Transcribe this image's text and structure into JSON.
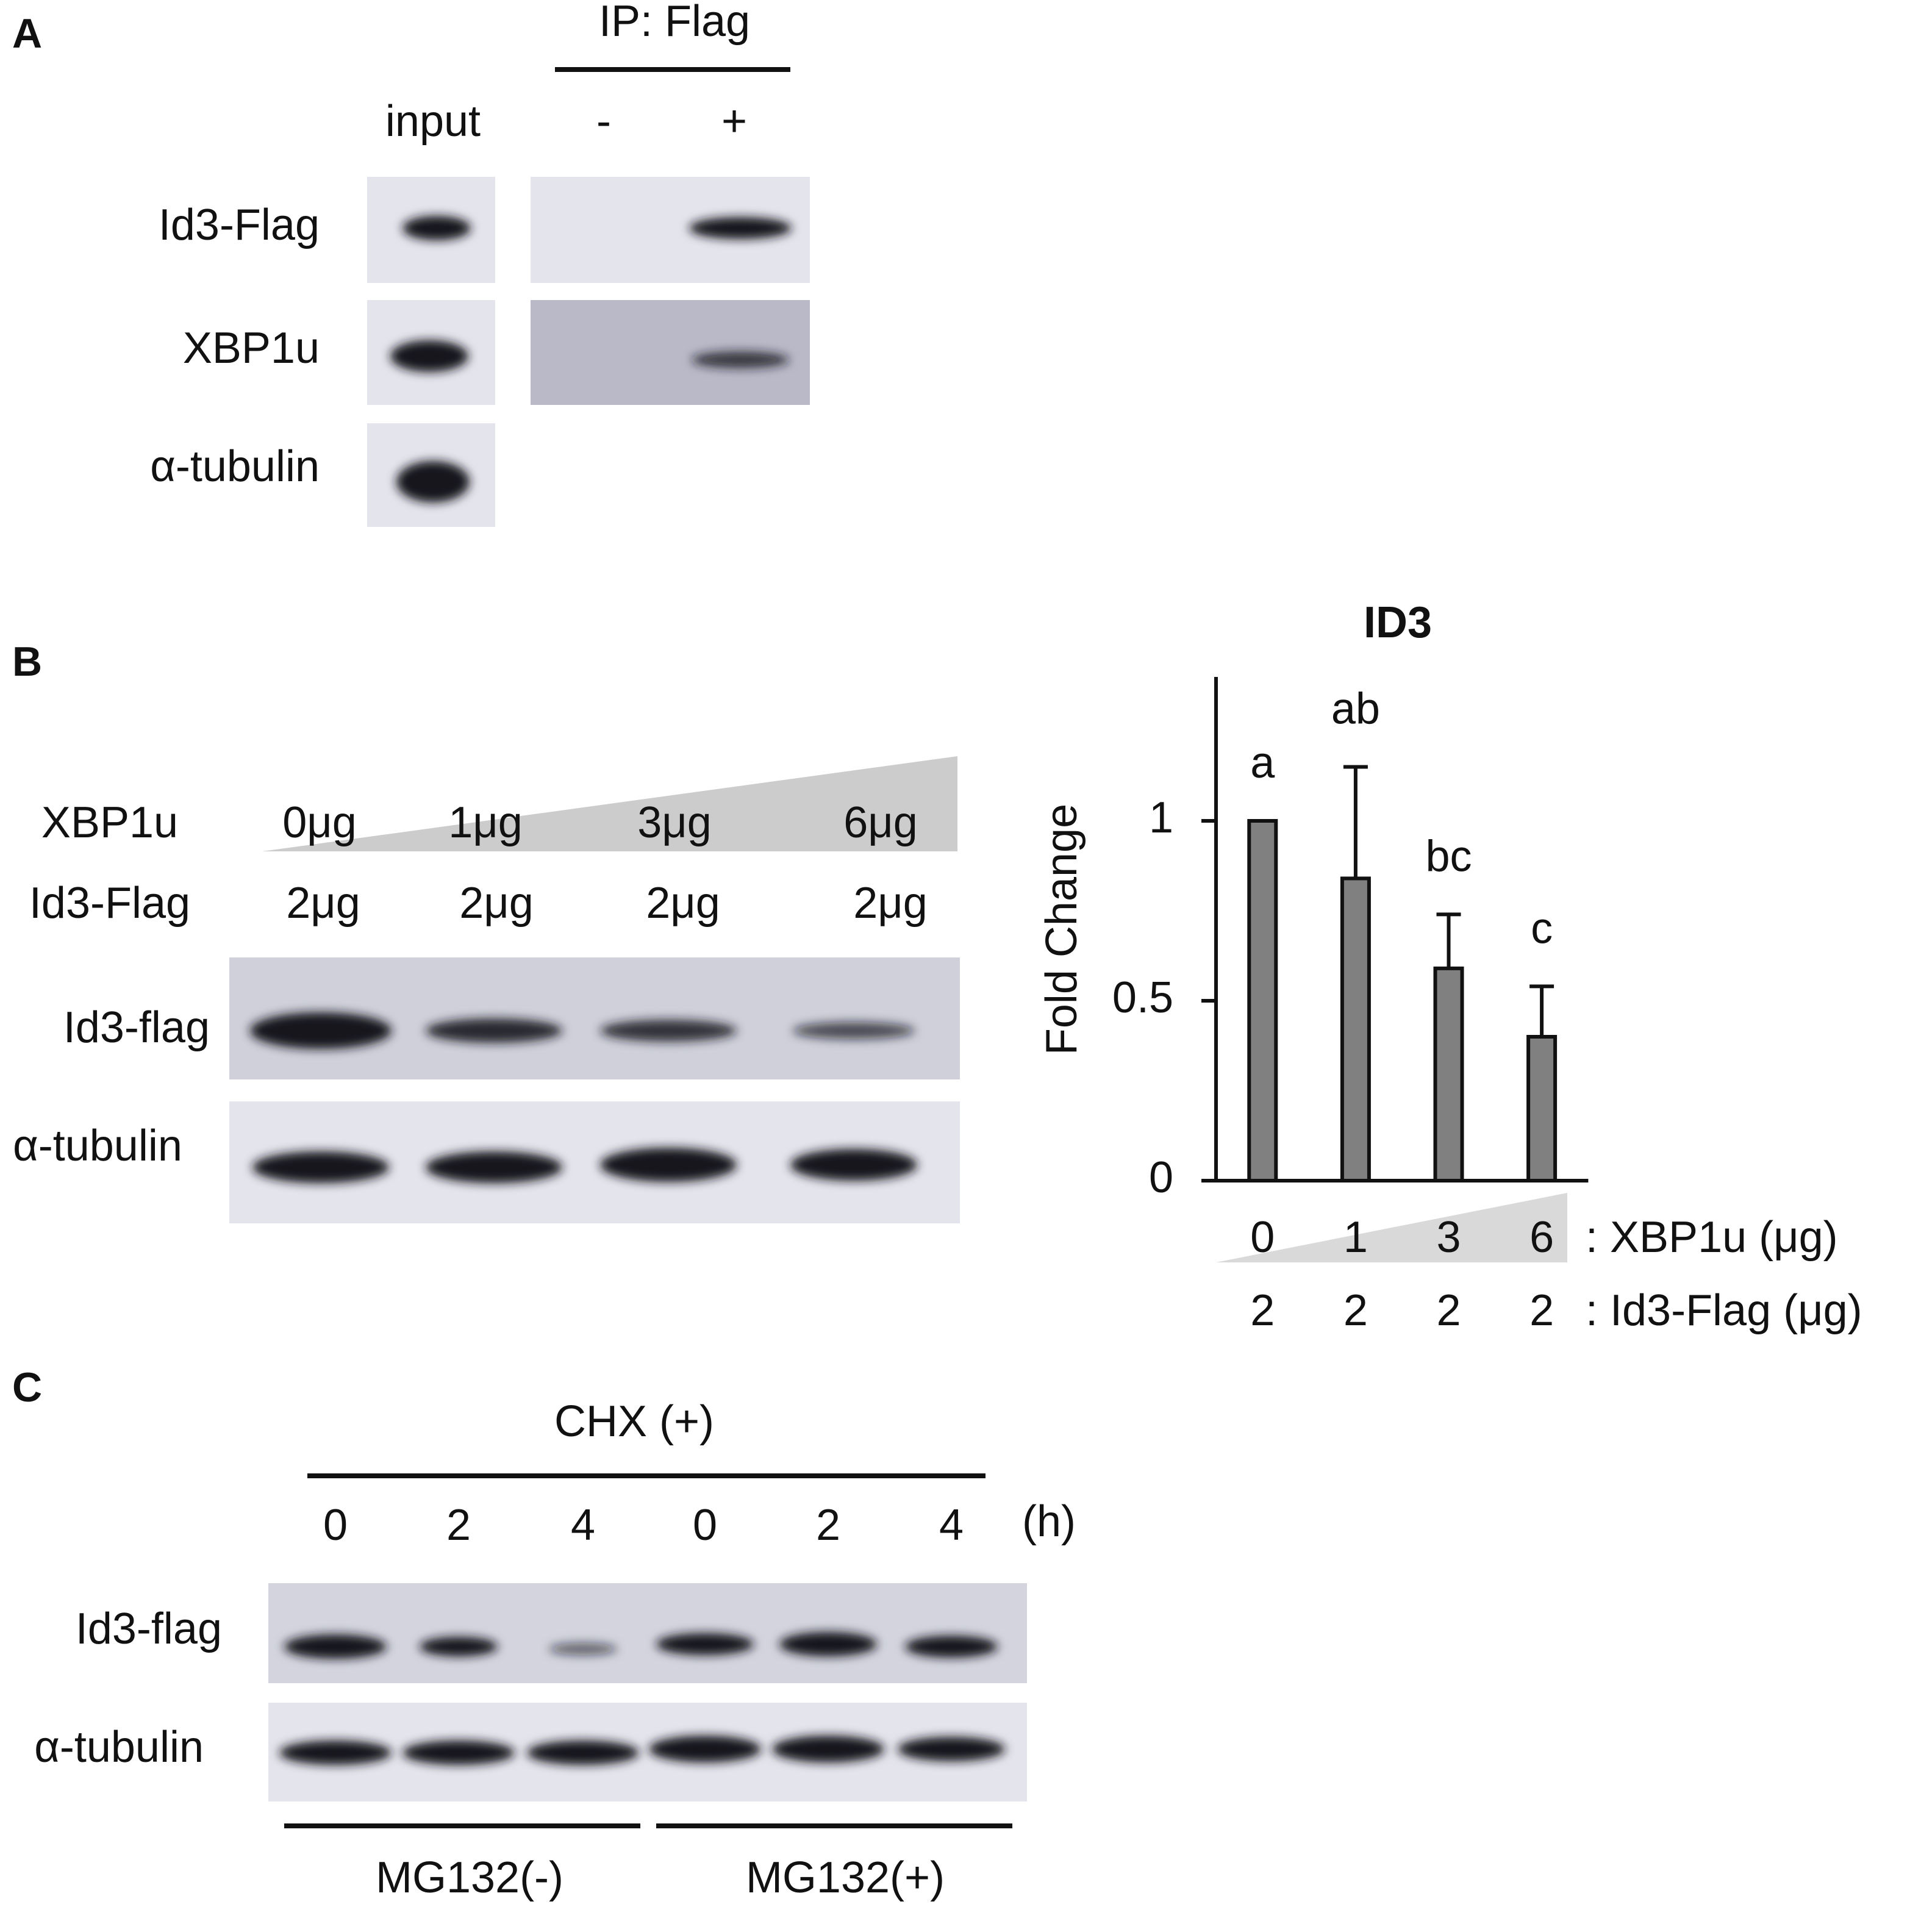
{
  "panel_a": {
    "label": "A",
    "ip_header": "IP: Flag",
    "lanes": [
      "input",
      "-",
      "+"
    ],
    "rows": [
      "Id3-Flag",
      "XBP1u",
      "α-tubulin"
    ]
  },
  "panel_b": {
    "label": "B",
    "conditions": [
      {
        "name": "XBP1u",
        "amounts": [
          "0μg",
          "1μg",
          "3μg",
          "6μg"
        ]
      },
      {
        "name": "Id3-Flag",
        "amounts": [
          "2μg",
          "2μg",
          "2μg",
          "2μg"
        ]
      }
    ],
    "rows": [
      "Id3-flag",
      "α-tubulin"
    ]
  },
  "chart_data": {
    "type": "bar",
    "title": "ID3",
    "y_label": "Fold Change",
    "categories": [
      "0",
      "1",
      "3",
      "6"
    ],
    "categories_label": ": XBP1u (μg)",
    "second_row": {
      "label": ": Id3-Flag (μg)",
      "values": [
        "2",
        "2",
        "2",
        "2"
      ]
    },
    "values": [
      1,
      0.84,
      0.59,
      0.4
    ],
    "errors": [
      null,
      0.31,
      0.15,
      0.14
    ],
    "annotations": [
      "a",
      "ab",
      "bc",
      "c"
    ],
    "color": "#808080",
    "ylim": [
      0,
      1.4
    ],
    "yticks": [
      0,
      0.5,
      1
    ]
  },
  "panel_c": {
    "label": "C",
    "treatment": "CHX (+)",
    "times": [
      "0",
      "2",
      "4",
      "0",
      "2",
      "4"
    ],
    "time_unit": "(h)",
    "rows": [
      "Id3-flag",
      "α-tubulin"
    ],
    "groups": [
      "MG132(-)",
      "MG132(+)"
    ]
  }
}
